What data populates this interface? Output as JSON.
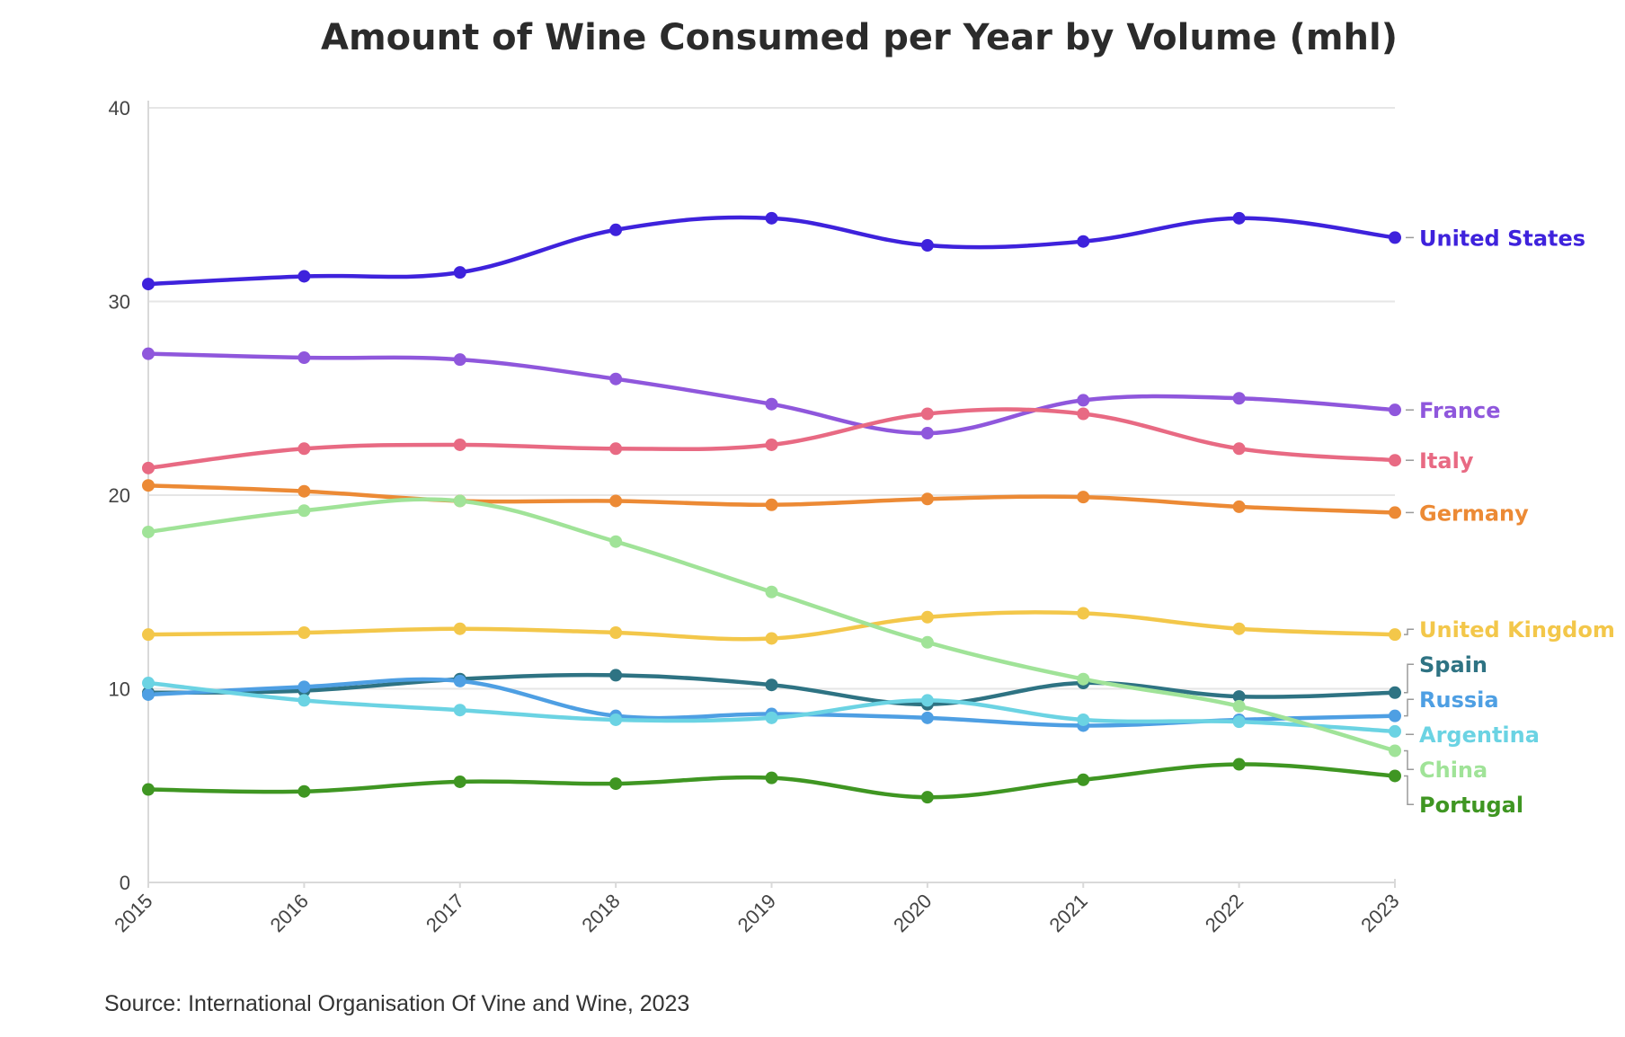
{
  "chart_data": {
    "type": "line",
    "title": "Amount of Wine Consumed per Year by Volume (mhl)",
    "source": "Source: International Organisation Of Vine and Wine, 2023",
    "xlabel": "",
    "ylabel": "",
    "x": [
      "2015",
      "2016",
      "2017",
      "2018",
      "2019",
      "2020",
      "2021",
      "2022",
      "2023"
    ],
    "yticks": [
      "0",
      "10",
      "20",
      "30",
      "40"
    ],
    "ylim": [
      0,
      40
    ],
    "grid": true,
    "legend": "direct labels at right end of lines",
    "series": [
      {
        "name": "United States",
        "color": "#3e22dc",
        "values": [
          30.9,
          31.3,
          31.5,
          33.7,
          34.3,
          32.9,
          33.1,
          34.3,
          33.3
        ]
      },
      {
        "name": "France",
        "color": "#8f57dc",
        "values": [
          27.3,
          27.1,
          27.0,
          26.0,
          24.7,
          23.2,
          24.9,
          25.0,
          24.4
        ]
      },
      {
        "name": "Italy",
        "color": "#e86a83",
        "values": [
          21.4,
          22.4,
          22.6,
          22.4,
          22.6,
          24.2,
          24.2,
          22.4,
          21.8
        ]
      },
      {
        "name": "Germany",
        "color": "#ec8a35",
        "values": [
          20.5,
          20.2,
          19.7,
          19.7,
          19.5,
          19.8,
          19.9,
          19.4,
          19.1
        ]
      },
      {
        "name": "United Kingdom",
        "color": "#f3c74a",
        "values": [
          12.8,
          12.9,
          13.1,
          12.9,
          12.6,
          13.7,
          13.9,
          13.1,
          12.8
        ]
      },
      {
        "name": "Spain",
        "color": "#2e7383",
        "values": [
          9.8,
          9.9,
          10.5,
          10.7,
          10.2,
          9.2,
          10.3,
          9.6,
          9.8
        ]
      },
      {
        "name": "Russia",
        "color": "#4e9fe3",
        "values": [
          9.7,
          10.1,
          10.4,
          8.6,
          8.7,
          8.5,
          8.1,
          8.4,
          8.6
        ]
      },
      {
        "name": "Argentina",
        "color": "#6bd3e3",
        "values": [
          10.3,
          9.4,
          8.9,
          8.4,
          8.5,
          9.4,
          8.4,
          8.3,
          7.8
        ]
      },
      {
        "name": "China",
        "color": "#a0e398",
        "values": [
          18.1,
          19.2,
          19.7,
          17.6,
          15.0,
          12.4,
          10.5,
          9.1,
          6.8
        ]
      },
      {
        "name": "Portugal",
        "color": "#3f9622",
        "values": [
          4.8,
          4.7,
          5.2,
          5.1,
          5.4,
          4.4,
          5.3,
          6.1,
          5.5
        ]
      }
    ]
  }
}
